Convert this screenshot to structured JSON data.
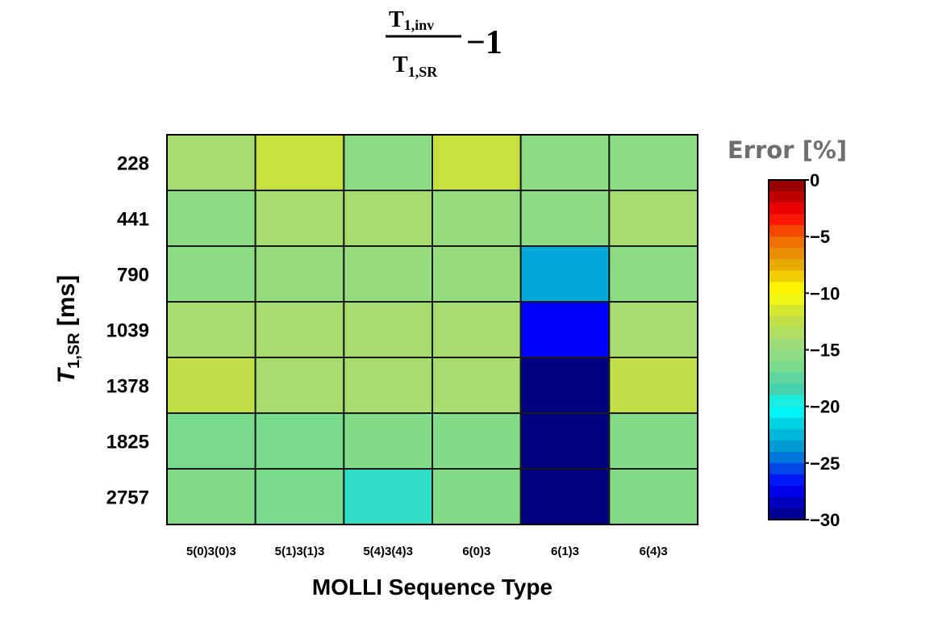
{
  "chart_data": {
    "type": "heatmap",
    "title": {
      "numerator": "T",
      "numerator_sub": "1,inv",
      "denominator": "T",
      "denominator_sub": "1,SR",
      "suffix": "−1"
    },
    "xlabel": "MOLLI Sequence Type",
    "ylabel": {
      "main": "T",
      "sub": "1,SR",
      "rest": " [ms]"
    },
    "x_categories": [
      "5(0)3(0)3",
      "5(1)3(1)3",
      "5(4)3(4)3",
      "6(0)3",
      "6(1)3",
      "6(4)3"
    ],
    "y_categories": [
      "228",
      "441",
      "790",
      "1039",
      "1378",
      "1825",
      "2757"
    ],
    "values": [
      [
        -14.0,
        -12.0,
        -15.5,
        -12.0,
        -15.5,
        -15.5
      ],
      [
        -15.5,
        -14.0,
        -14.0,
        -15.0,
        -15.5,
        -14.0
      ],
      [
        -15.5,
        -15.0,
        -15.0,
        -15.0,
        -23.0,
        -15.5
      ],
      [
        -14.0,
        -14.0,
        -14.0,
        -14.0,
        -27.0,
        -14.0
      ],
      [
        -12.5,
        -14.0,
        -14.0,
        -14.0,
        -30.0,
        -12.5
      ],
      [
        -16.5,
        -16.5,
        -16.0,
        -16.0,
        -30.0,
        -16.0
      ],
      [
        -16.0,
        -16.5,
        -19.0,
        -16.0,
        -30.0,
        -16.0
      ]
    ],
    "colorbar": {
      "title": "Error [%]",
      "range": [
        -30,
        0
      ],
      "ticks": [
        "0",
        "−5",
        "−10",
        "−15",
        "−20",
        "−25",
        "−30"
      ],
      "tick_values": [
        0,
        -5,
        -10,
        -15,
        -20,
        -25,
        -30
      ]
    }
  }
}
